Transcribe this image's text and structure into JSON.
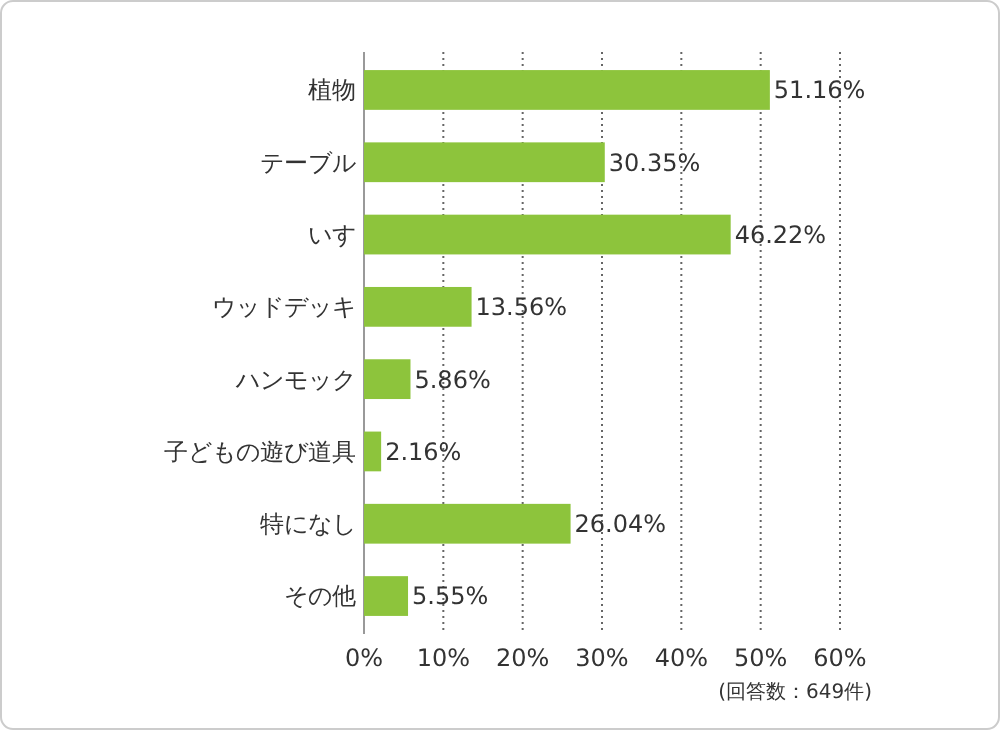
{
  "chart_data": {
    "type": "bar",
    "orientation": "horizontal",
    "categories": [
      "植物",
      "テーブル",
      "いす",
      "ウッドデッキ",
      "ハンモック",
      "子どもの遊び道具",
      "特になし",
      "その他"
    ],
    "values": [
      51.16,
      30.35,
      46.22,
      13.56,
      5.86,
      2.16,
      26.04,
      5.55
    ],
    "value_labels": [
      "51.16%",
      "30.35%",
      "46.22%",
      "13.56%",
      "5.86%",
      "2.16%",
      "26.04%",
      "5.55%"
    ],
    "color": "#8dc43c",
    "xlim": [
      0,
      60
    ],
    "xticks": [
      {
        "value": 0,
        "label": "0%"
      },
      {
        "value": 10,
        "label": "10%"
      },
      {
        "value": 20,
        "label": "20%"
      },
      {
        "value": 30,
        "label": "30%"
      },
      {
        "value": 40,
        "label": "40%"
      },
      {
        "value": 50,
        "label": "50%"
      },
      {
        "value": 60,
        "label": "60%"
      }
    ],
    "grid": "x",
    "annotations": [
      "(回答数：649件)"
    ]
  }
}
